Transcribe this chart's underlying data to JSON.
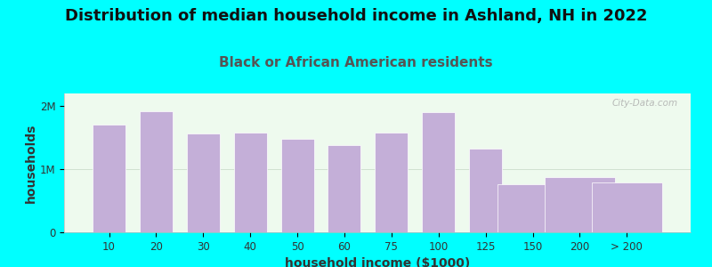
{
  "title": "Distribution of median household income in Ashland, NH in 2022",
  "subtitle": "Black or African American residents",
  "xlabel": "household income ($1000)",
  "ylabel": "households",
  "background_color": "#00FFFF",
  "plot_bg_color": "#eefaee",
  "bar_color": "#c4afd8",
  "bar_edge_color": "#ffffff",
  "categories": [
    "10",
    "20",
    "30",
    "40",
    "50",
    "60",
    "75",
    "100",
    "125",
    "150",
    "200",
    "> 200"
  ],
  "bar_positions": [
    0,
    1,
    2,
    3,
    4,
    5,
    6,
    7,
    8,
    9,
    10,
    11
  ],
  "bar_rel_widths": [
    0.8,
    0.8,
    0.8,
    0.8,
    0.8,
    0.8,
    0.8,
    0.8,
    0.8,
    0.8,
    0.8,
    0.8
  ],
  "values": [
    1700000,
    1920000,
    1560000,
    1580000,
    1480000,
    1380000,
    1580000,
    1900000,
    1330000,
    760000,
    870000,
    790000
  ],
  "ylim": [
    0,
    2200000
  ],
  "yticks": [
    0,
    1000000,
    2000000
  ],
  "ytick_labels": [
    "0",
    "1M",
    "2M"
  ],
  "title_fontsize": 13,
  "subtitle_fontsize": 11,
  "axis_label_fontsize": 10,
  "tick_fontsize": 8.5,
  "title_color": "#111111",
  "subtitle_color": "#555555",
  "ylabel_color": "#333333",
  "xlabel_color": "#333333"
}
